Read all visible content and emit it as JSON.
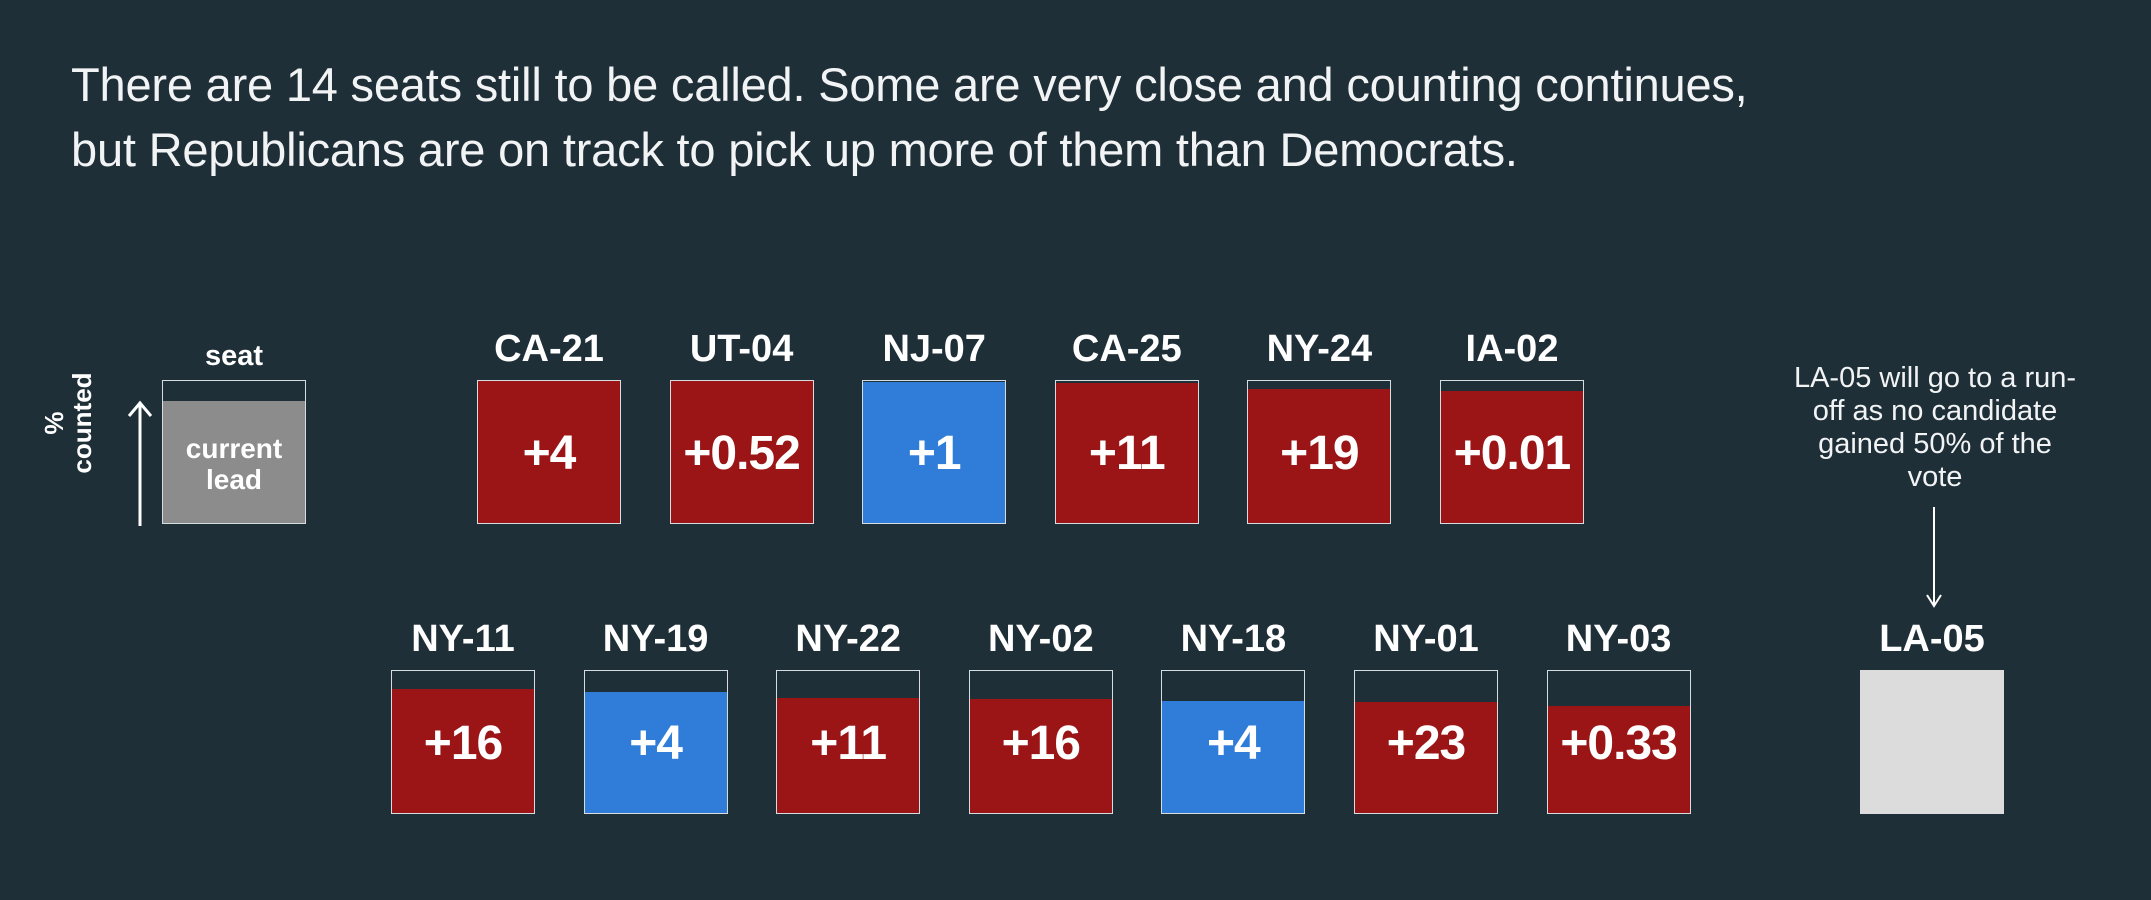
{
  "headline": {
    "line1": "There are 14 seats still to be called. Some are very close and counting continues,",
    "line2": "but Republicans are on track to pick up more of them than Democrats."
  },
  "key": {
    "seat_label": "seat",
    "lead_label": "current lead",
    "axis_label": "% counted",
    "color": "#8c8c8c"
  },
  "colors": {
    "republican": "#9b1516",
    "democrat": "#2f7dd9",
    "runoff": "#dcdcdc",
    "background": "#1f2f38"
  },
  "note": {
    "text": "LA-05 will go to a run-off as no candidate gained 50% of the vote"
  },
  "runoff_seat": {
    "seat": "LA-05"
  },
  "chart_data": {
    "type": "table",
    "rows": [
      {
        "seats": [
          {
            "seat": "CA-21",
            "lead": "+4",
            "party": "republican",
            "pct_counted": 100
          },
          {
            "seat": "UT-04",
            "lead": "+0.52",
            "party": "republican",
            "pct_counted": 100
          },
          {
            "seat": "NJ-07",
            "lead": "+1",
            "party": "democrat",
            "pct_counted": 98
          },
          {
            "seat": "CA-25",
            "lead": "+11",
            "party": "republican",
            "pct_counted": 97
          },
          {
            "seat": "NY-24",
            "lead": "+19",
            "party": "republican",
            "pct_counted": 93
          },
          {
            "seat": "IA-02",
            "lead": "+0.01",
            "party": "republican",
            "pct_counted": 92
          }
        ]
      },
      {
        "seats": [
          {
            "seat": "NY-11",
            "lead": "+16",
            "party": "republican",
            "pct_counted": 86
          },
          {
            "seat": "NY-19",
            "lead": "+4",
            "party": "democrat",
            "pct_counted": 84
          },
          {
            "seat": "NY-22",
            "lead": "+11",
            "party": "republican",
            "pct_counted": 80
          },
          {
            "seat": "NY-02",
            "lead": "+16",
            "party": "republican",
            "pct_counted": 79
          },
          {
            "seat": "NY-18",
            "lead": "+4",
            "party": "democrat",
            "pct_counted": 78
          },
          {
            "seat": "NY-01",
            "lead": "+23",
            "party": "republican",
            "pct_counted": 77
          },
          {
            "seat": "NY-03",
            "lead": "+0.33",
            "party": "republican",
            "pct_counted": 74
          }
        ]
      }
    ]
  }
}
